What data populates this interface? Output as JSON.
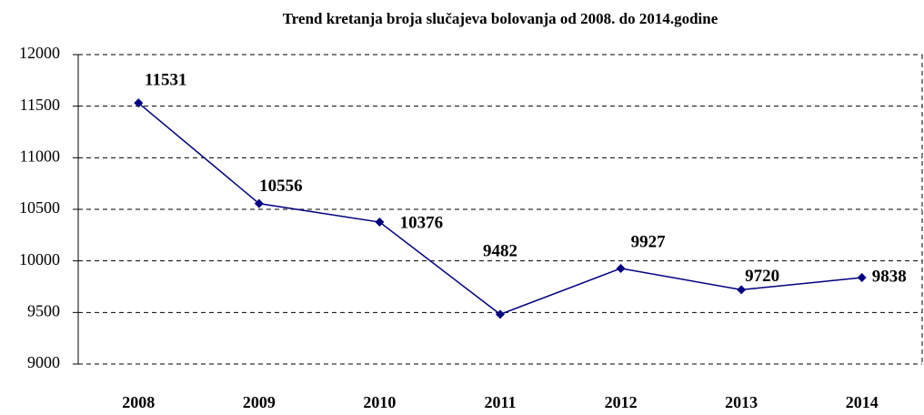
{
  "chart_data": {
    "type": "line",
    "title": "Trend kretanja broja slučajeva bolovanja od 2008. do 2014.godine",
    "categories": [
      "2008",
      "2009",
      "2010",
      "2011",
      "2012",
      "2013",
      "2014"
    ],
    "values": [
      11531,
      10556,
      10376,
      9482,
      9927,
      9720,
      9838
    ],
    "color": "#000080",
    "ylim": [
      9000,
      12000
    ],
    "yticks": [
      9000,
      9500,
      10000,
      10500,
      11000,
      11500,
      12000
    ],
    "grid": true
  }
}
